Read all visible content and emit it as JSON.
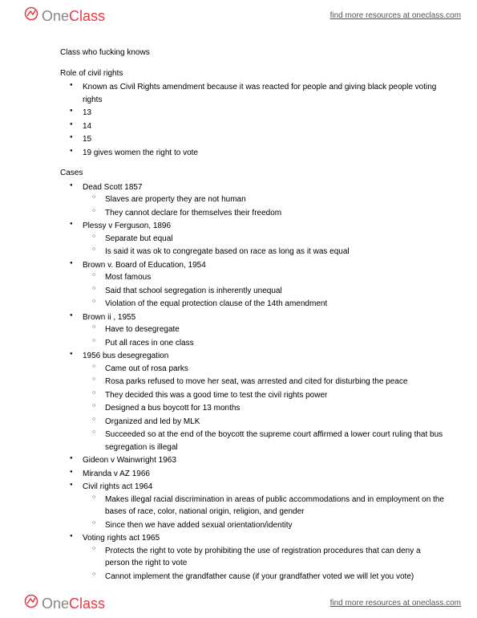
{
  "brand": {
    "part1": "One",
    "part2": "Class"
  },
  "tagline": "find more resources at oneclass.com",
  "title": "Class who fucking knows",
  "section1": {
    "heading": "Role of civil rights",
    "items": [
      {
        "text": "Known as Civil Rights amendment because it was reacted for people and giving black people voting rights"
      },
      {
        "text": "13"
      },
      {
        "text": "14"
      },
      {
        "text": "15"
      },
      {
        "text": "19 gives women the right to vote"
      }
    ]
  },
  "section2": {
    "heading": "Cases",
    "items": [
      {
        "text": "Dead Scott 1857",
        "sub": [
          "Slaves are property they are not human",
          "They cannot declare for themselves their freedom"
        ]
      },
      {
        "text": "Plessy v Ferguson, 1896",
        "sub": [
          "Separate but equal",
          "Is said it was ok to congregate based on race as long as it was equal"
        ]
      },
      {
        "text": "Brown v. Board of Education, 1954",
        "sub": [
          "Most famous",
          "Said that school segregation is inherently unequal",
          "Violation of the equal protection clause of the 14th amendment"
        ]
      },
      {
        "text": "Brown ii , 1955",
        "sub": [
          "Have to desegregate",
          "Put all races in one class"
        ]
      },
      {
        "text": "1956 bus desegregation",
        "sub": [
          "Came out of rosa parks",
          "Rosa parks refused to move her seat, was arrested and cited for disturbing the peace",
          "They decided this was a good time to test the civil rights power",
          "Designed a bus boycott for 13 months",
          "Organized and led by MLK",
          "Succeeded so at the end of the boycott the supreme court affirmed a lower court ruling that bus segregation is illegal"
        ]
      },
      {
        "text": "Gideon v Wainwright 1963"
      },
      {
        "text": "Miranda v AZ 1966"
      },
      {
        "text": "Civil rights act 1964",
        "sub": [
          "Makes illegal racial discrimination in areas of public accommodations and in employment on the bases of race, color, national origin, religion, and gender",
          "Since then we have added sexual orientation/identity"
        ]
      },
      {
        "text": "Voting rights act 1965",
        "sub": [
          "Protects the right to vote by prohibiting the use of registration procedures that can deny a person the right to vote",
          "Cannot implement the grandfather cause (if your grandfather voted we will let you vote)"
        ]
      }
    ]
  }
}
